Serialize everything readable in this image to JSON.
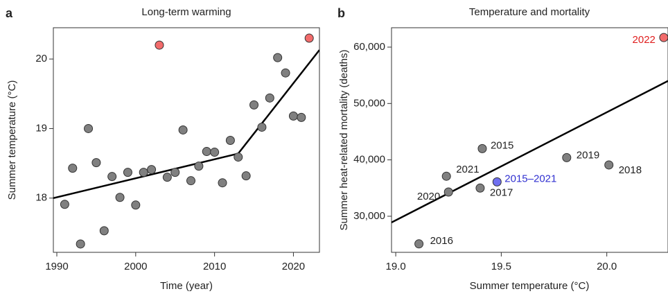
{
  "chart_data": [
    {
      "type": "scatter",
      "panel_label": "a",
      "title": "Long-term warming",
      "xlabel": "Time (year)",
      "ylabel": "Summer temperature (°C)",
      "xlim": [
        1989.56,
        2023.3
      ],
      "ylim": [
        17.22,
        20.45
      ],
      "xticks": [
        1990,
        2000,
        2010,
        2020
      ],
      "yticks": [
        18,
        19,
        20
      ],
      "series": [
        {
          "color": "#808080",
          "x": [
            1991,
            1992,
            1993,
            1994,
            1995,
            1996,
            1997,
            1998,
            1999,
            2000,
            2001,
            2002,
            2004,
            2005,
            2006,
            2007,
            2008,
            2009,
            2010,
            2011,
            2012,
            2013,
            2014,
            2015,
            2016,
            2017,
            2018,
            2019,
            2020,
            2021
          ],
          "values": [
            17.91,
            18.43,
            17.34,
            19.0,
            18.51,
            17.53,
            18.31,
            18.01,
            18.37,
            17.9,
            18.37,
            18.41,
            18.3,
            18.37,
            18.98,
            18.25,
            18.46,
            18.67,
            18.66,
            18.22,
            18.83,
            18.59,
            18.32,
            19.34,
            19.02,
            19.44,
            20.02,
            19.8,
            19.18,
            19.16
          ]
        },
        {
          "color": "#f26b6b",
          "x": [
            2003,
            2022
          ],
          "values": [
            20.2,
            20.3
          ]
        }
      ],
      "fit": {
        "color": "#000000",
        "x": [
          1989.56,
          2013,
          2023.3
        ],
        "values": [
          18.0,
          18.64,
          20.13
        ]
      }
    },
    {
      "type": "scatter",
      "panel_label": "b",
      "title": "Temperature and mortality",
      "xlabel": "Summer temperature (°C)",
      "ylabel": "Summer heat-related mortality (deaths)",
      "xlim": [
        18.98,
        20.29
      ],
      "ylim": [
        23600,
        63440
      ],
      "xticks": [
        {
          "value": 19.0,
          "label": "19.0"
        },
        19.5,
        {
          "value": 20.0,
          "label": "20.0"
        }
      ],
      "yticks": [
        {
          "value": 30000,
          "label": "30,000"
        },
        {
          "value": 40000,
          "label": "40,000"
        },
        {
          "value": 50000,
          "label": "50,000"
        },
        {
          "value": 60000,
          "label": "60,000"
        }
      ],
      "series": [
        {
          "color": "#808080",
          "label_color": "#222222",
          "x": [
            19.11,
            19.24,
            19.25,
            19.41,
            19.4,
            19.81,
            20.01
          ],
          "values": [
            25100,
            37100,
            34300,
            42000,
            35000,
            40400,
            39100
          ],
          "labels": [
            "2016",
            "2021",
            "2020",
            "2015",
            "2017",
            "2019",
            "2018"
          ]
        },
        {
          "color": "#7070f0",
          "label_color": "#3030d0",
          "x": [
            19.48
          ],
          "values": [
            36100
          ],
          "labels": [
            "2015–2021"
          ]
        },
        {
          "color": "#f26b6b",
          "label_color": "#e02020",
          "x": [
            20.27
          ],
          "values": [
            61700
          ],
          "labels": [
            "2022"
          ]
        }
      ],
      "fit": {
        "color": "#000000",
        "x": [
          18.98,
          20.29
        ],
        "values": [
          28900,
          54000
        ]
      }
    }
  ]
}
